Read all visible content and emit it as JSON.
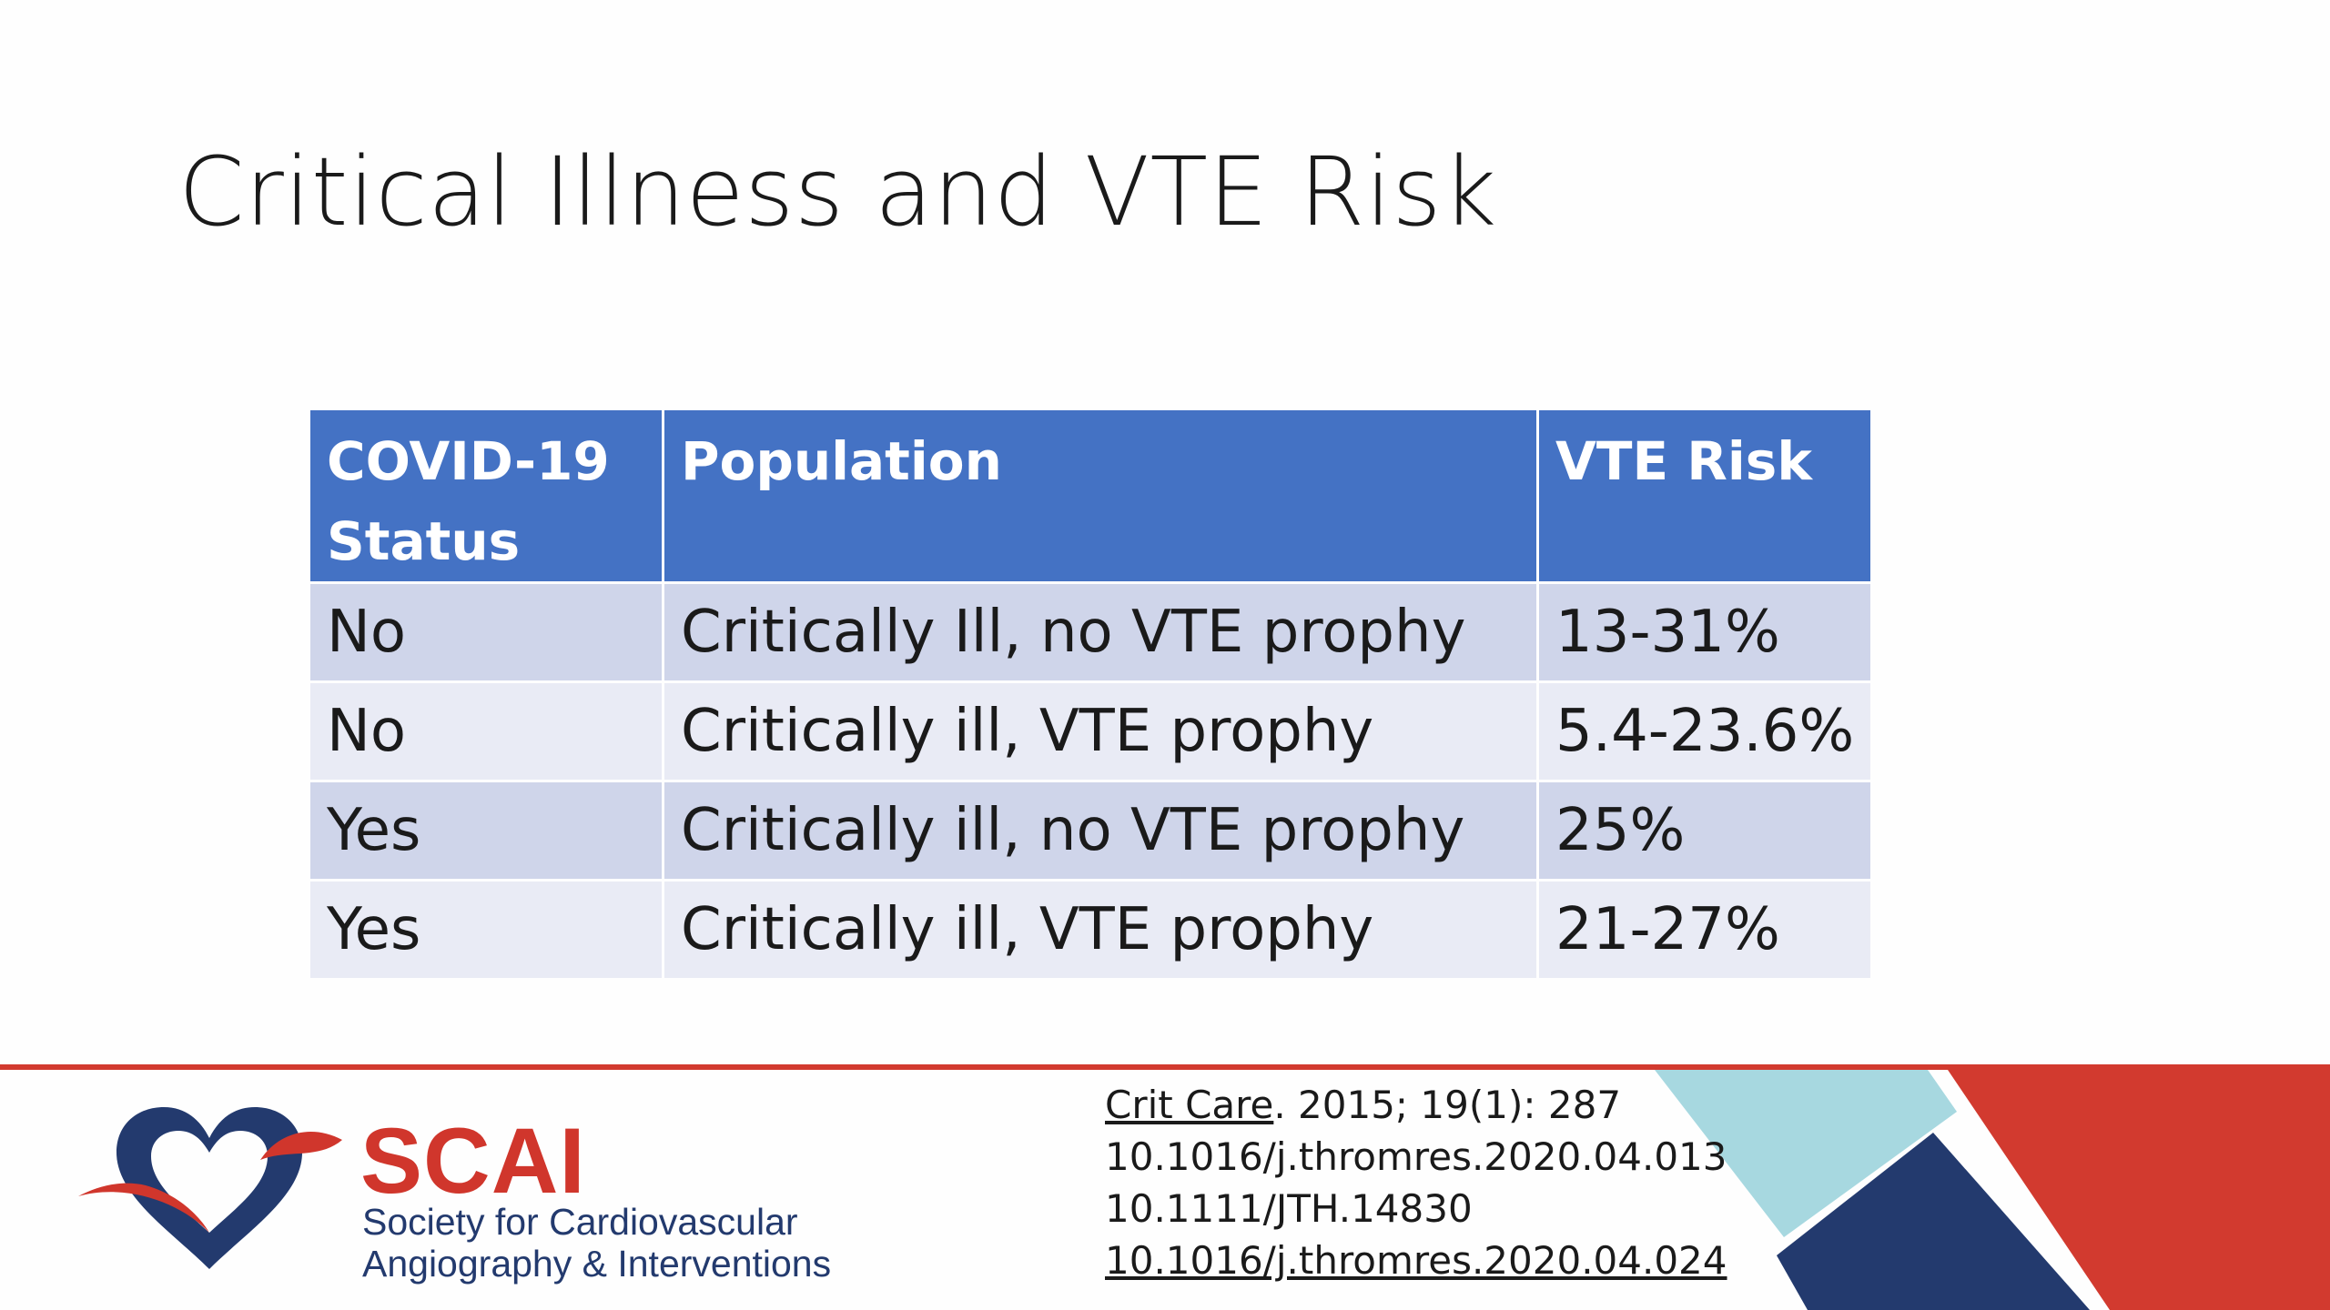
{
  "slide": {
    "title": "Critical Illness and VTE Risk"
  },
  "table": {
    "headers": [
      "COVID-19 Status",
      "Population",
      "VTE Risk"
    ],
    "rows": [
      [
        "No",
        "Critically Ill, no VTE prophy",
        "13-31%"
      ],
      [
        "No",
        "Critically ill, VTE prophy",
        "5.4-23.6%"
      ],
      [
        "Yes",
        "Critically ill, no VTE prophy",
        "25%"
      ],
      [
        "Yes",
        "Critically ill, VTE prophy",
        "21-27%"
      ]
    ]
  },
  "references": {
    "journal": "Crit Care",
    "journal_detail": ". 2015; 19(1): 287",
    "lines": [
      "10.1016/j.thromres.2020.04.013",
      "10.1111/JTH.14830",
      "10.1016/j.thromres.2020.04.024"
    ]
  },
  "logo": {
    "name": "SCAI",
    "subtitle_line1": "Society for Cardiovascular",
    "subtitle_line2": "Angiography & Interventions"
  },
  "colors": {
    "header_blue": "#4472c4",
    "row_dark": "#cfd5ea",
    "row_light": "#e9ebf5",
    "accent_red": "#d23a2f",
    "navy": "#233a6e",
    "light_blue": "#a7d8e0"
  }
}
